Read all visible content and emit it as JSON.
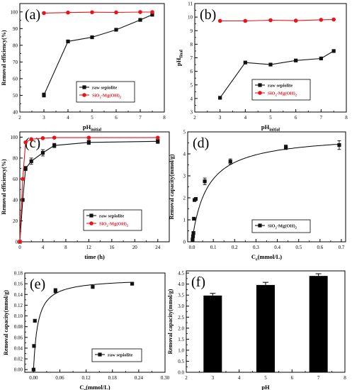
{
  "colors": {
    "black": "#111111",
    "red": "#e8141c",
    "axis": "#000000"
  },
  "chart_data": [
    {
      "panel_label": "(a)",
      "type": "line",
      "xlabel_main": "pH",
      "xlabel_sub": "initial",
      "ylabel": "Removal efficiency(%)",
      "xlim": [
        2,
        8
      ],
      "ylim": [
        40,
        105
      ],
      "xticks": [
        "2",
        "3",
        "4",
        "5",
        "6",
        "7",
        "8"
      ],
      "yticks": [
        "40",
        "50",
        "60",
        "70",
        "80",
        "90",
        "100"
      ],
      "series": [
        {
          "name": "raw sepiolite",
          "color": "black",
          "marker": "square",
          "x": [
            3,
            4,
            5,
            6,
            7,
            7.5
          ],
          "y": [
            50.2,
            82.3,
            84.8,
            89.3,
            95.2,
            98.3
          ],
          "err": [
            1.2,
            0,
            0,
            0,
            0,
            0
          ]
        },
        {
          "name_main": "SiO",
          "name_sub1": "2",
          "name_mid": "-Mg(OH)",
          "name_sub2": "2",
          "color": "red",
          "marker": "circle",
          "x": [
            3,
            4,
            5,
            6,
            7,
            7.5
          ],
          "y": [
            99.3,
            99.6,
            99.8,
            99.7,
            99.9,
            99.9
          ],
          "err": [
            0,
            0,
            0,
            0,
            0,
            0
          ]
        }
      ]
    },
    {
      "panel_label": "(b)",
      "type": "line",
      "xlabel_main": "pH",
      "xlabel_sub": "initial",
      "ylabel_main": "pH",
      "ylabel_sub": "final",
      "xlim": [
        2,
        8
      ],
      "ylim": [
        3,
        11
      ],
      "xticks": [
        "2",
        "3",
        "4",
        "5",
        "6",
        "7",
        "8"
      ],
      "yticks": [
        "3",
        "4",
        "5",
        "6",
        "7",
        "8",
        "9",
        "10",
        "11"
      ],
      "series": [
        {
          "name": "raw sepiolite",
          "color": "black",
          "marker": "square",
          "x": [
            3,
            4,
            5,
            6,
            7,
            7.5
          ],
          "y": [
            4.05,
            6.65,
            6.5,
            6.8,
            6.95,
            7.5
          ]
        },
        {
          "name_main": "SiO",
          "name_sub1": "2",
          "name_mid": "-Mg(OH)",
          "name_sub2": "2",
          "color": "red",
          "marker": "circle",
          "x": [
            3,
            4,
            5,
            6,
            7,
            7.5
          ],
          "y": [
            9.72,
            9.72,
            9.77,
            9.74,
            9.8,
            9.82
          ]
        }
      ]
    },
    {
      "panel_label": "(c)",
      "type": "line",
      "xlabel": "time (h)",
      "ylabel": "Removal efficiency(%)",
      "xlim": [
        0,
        26
      ],
      "ylim": [
        0,
        105
      ],
      "xticks": [
        "0",
        "4",
        "8",
        "12",
        "16",
        "20",
        "24"
      ],
      "yticks": [
        "0",
        "20",
        "40",
        "60",
        "80",
        "100"
      ],
      "series": [
        {
          "name": "raw sepiolite",
          "color": "black",
          "marker": "square",
          "x": [
            0,
            0.5,
            1,
            2,
            4,
            6,
            12,
            24
          ],
          "y": [
            0,
            40,
            70,
            77,
            85,
            92,
            95,
            96
          ],
          "err": [
            0,
            0,
            2,
            3,
            3,
            2,
            2,
            2
          ]
        },
        {
          "name_main": "SiO",
          "name_sub1": "2",
          "name_mid": "-Mg(OH)",
          "name_sub2": "2",
          "color": "red",
          "marker": "circle",
          "x": [
            0,
            0.5,
            1,
            2,
            4,
            6,
            12,
            24
          ],
          "y": [
            0,
            60,
            95,
            98,
            99,
            99.5,
            99.5,
            99.5
          ],
          "err": [
            0,
            0,
            0,
            0,
            0,
            0,
            0,
            0
          ]
        }
      ]
    },
    {
      "panel_label": "(d)",
      "type": "scatter",
      "xlabel_main": "C",
      "xlabel_sub": "e",
      "xlabel_rest": "(mmol/L)",
      "ylabel": "Removal capacity(mmol/g)",
      "xlim": [
        -0.02,
        0.72
      ],
      "ylim": [
        0,
        5
      ],
      "xticks": [
        "0.0",
        "0.1",
        "0.2",
        "0.3",
        "0.4",
        "0.5",
        "0.6",
        "0.7"
      ],
      "yticks": [
        "0",
        "1",
        "2",
        "3",
        "4",
        "5"
      ],
      "series": [
        {
          "name_main": "SiO",
          "name_sub1": "2",
          "name_mid": "-Mg(OH)",
          "name_sub2": "2",
          "color": "black",
          "marker": "square",
          "x": [
            0.003,
            0.005,
            0.007,
            0.009,
            0.012,
            0.018,
            0.06,
            0.18,
            0.44,
            0.69
          ],
          "y": [
            0.1,
            0.25,
            0.4,
            1.05,
            1.9,
            1.95,
            2.75,
            3.65,
            4.3,
            4.4
          ],
          "err": [
            0,
            0,
            0,
            0,
            0,
            0,
            0.15,
            0.12,
            0.1,
            0.2
          ]
        }
      ],
      "fit": {
        "qmax": 4.9,
        "K": 14
      }
    },
    {
      "panel_label": "(e)",
      "type": "scatter",
      "xlabel_main": "C",
      "xlabel_sub": "e",
      "xlabel_rest": "(mmol/L)",
      "ylabel": "Removal capacity(mmol/g)",
      "xlim": [
        -0.02,
        0.3
      ],
      "ylim": [
        -0.005,
        0.18
      ],
      "xticks": [
        "0.00",
        "0.06",
        "0.12",
        "0.18",
        "0.24",
        "0.30"
      ],
      "yticks": [
        "0.00",
        "0.02",
        "0.04",
        "0.06",
        "0.08",
        "0.10",
        "0.12",
        "0.14",
        "0.16",
        "0.18"
      ],
      "series": [
        {
          "name": "raw sepiolite",
          "color": "black",
          "marker": "square",
          "x": [
            0.0,
            0.001,
            0.003,
            0.05,
            0.135,
            0.225
          ],
          "y": [
            0.0,
            0.044,
            0.091,
            0.147,
            0.154,
            0.16
          ],
          "err": [
            0,
            0,
            0,
            0.004,
            0,
            0
          ]
        }
      ],
      "fit": {
        "qmax": 0.17,
        "K": 100
      }
    },
    {
      "panel_label": "(f)",
      "type": "bar",
      "xlabel": "pH",
      "ylabel": "Removal capacity(mmol/g)",
      "xlim": [
        2,
        8
      ],
      "ylim": [
        0,
        4.6
      ],
      "xticks": [
        "2",
        "3",
        "4",
        "5",
        "6",
        "7",
        "8"
      ],
      "yticks": [
        "0.0",
        "0.5",
        "1.0",
        "1.5",
        "2.0",
        "2.5",
        "3.0",
        "3.5",
        "4.0",
        "4.5"
      ],
      "categories": [
        "3",
        "5",
        "7"
      ],
      "x": [
        3,
        5,
        7
      ],
      "values": [
        3.48,
        3.96,
        4.37
      ],
      "err": [
        0.1,
        0.12,
        0.1
      ]
    }
  ]
}
